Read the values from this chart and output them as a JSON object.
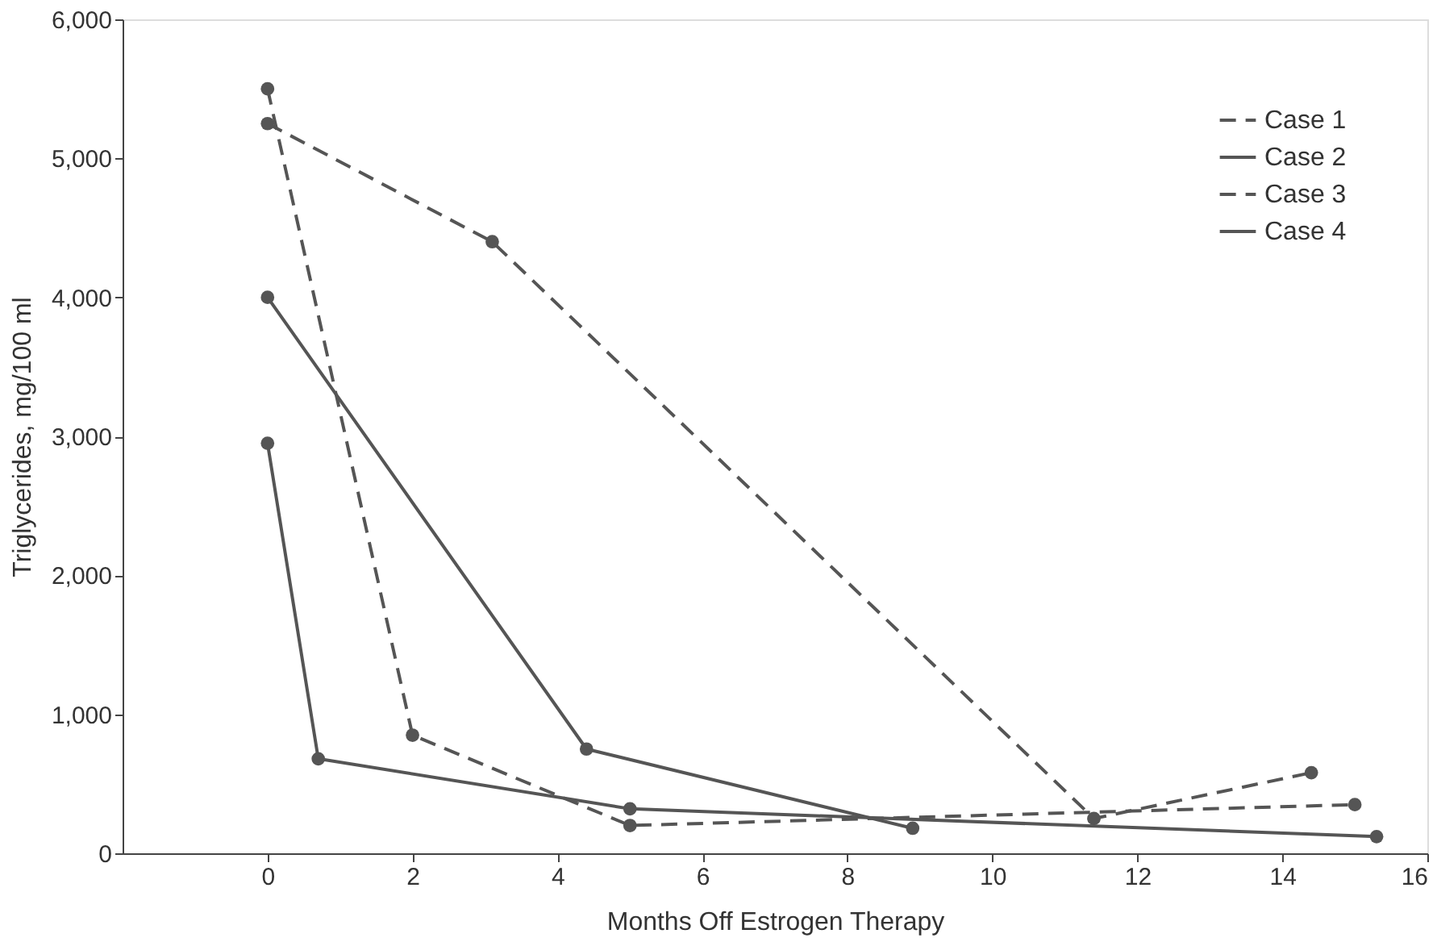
{
  "chart_data": {
    "type": "line",
    "xlabel": "Months Off Estrogen Therapy",
    "ylabel": "Triglycerides, mg/100 ml",
    "xlim": [
      -2,
      16
    ],
    "ylim": [
      0,
      6000
    ],
    "xticks": [
      0,
      2,
      4,
      6,
      8,
      10,
      12,
      14,
      16
    ],
    "yticks": [
      0,
      {
        "value": 1000,
        "label": "1,000"
      },
      {
        "value": 2000,
        "label": "2,000"
      },
      {
        "value": 3000,
        "label": "3,000"
      },
      {
        "value": 4000,
        "label": "4,000"
      },
      {
        "value": 5000,
        "label": "5,000"
      },
      {
        "value": 6000,
        "label": "6,000"
      }
    ],
    "grid": false,
    "legend": "top right",
    "marker": "circle",
    "series": [
      {
        "name": "Case 1",
        "color": "#555555",
        "line_style": "dashed",
        "x": [
          0,
          2,
          5,
          15
        ],
        "values": [
          5500,
          850,
          200,
          350
        ]
      },
      {
        "name": "Case 2",
        "color": "#555555",
        "line_style": "solid",
        "x": [
          0,
          4.4,
          8.9
        ],
        "values": [
          4000,
          750,
          180
        ]
      },
      {
        "name": "Case 3",
        "color": "#555555",
        "line_style": "dashed",
        "x": [
          0,
          3.1,
          11.4,
          14.4
        ],
        "values": [
          5250,
          4400,
          250,
          580
        ]
      },
      {
        "name": "Case 4",
        "color": "#555555",
        "line_style": "solid",
        "x": [
          0,
          0.7,
          5,
          15.3
        ],
        "values": [
          2950,
          680,
          320,
          120
        ]
      }
    ]
  }
}
